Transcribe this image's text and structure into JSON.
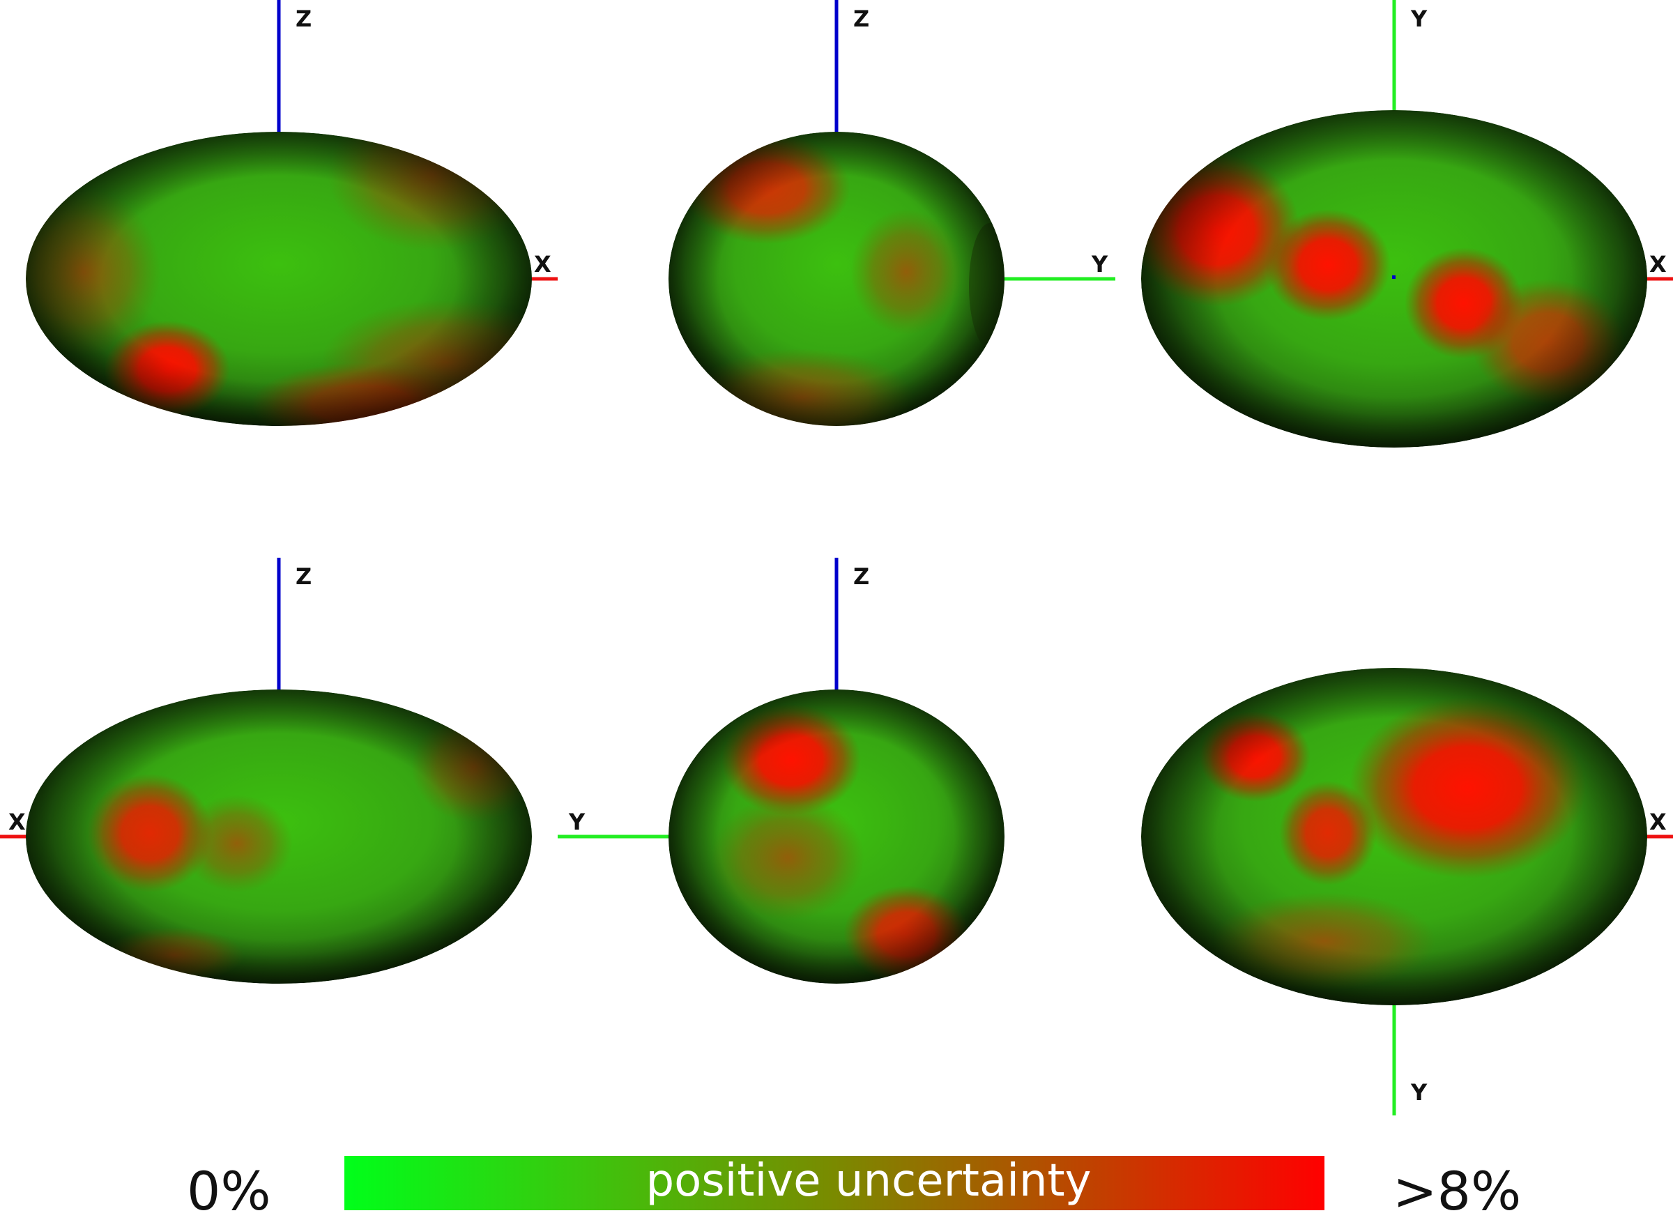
{
  "views": [
    {
      "id": "view-1",
      "axes": [
        {
          "label": "Z",
          "color": "#0000cc"
        },
        {
          "label": "X",
          "color": "#ee1111"
        }
      ]
    },
    {
      "id": "view-2",
      "axes": [
        {
          "label": "Z",
          "color": "#0000cc"
        },
        {
          "label": "Y",
          "color": "#22ee22"
        }
      ]
    },
    {
      "id": "view-3",
      "axes": [
        {
          "label": "Y",
          "color": "#22ee22"
        },
        {
          "label": "X",
          "color": "#ee1111"
        }
      ]
    },
    {
      "id": "view-4",
      "axes": [
        {
          "label": "Z",
          "color": "#0000cc"
        },
        {
          "label": "X",
          "color": "#ee1111"
        }
      ]
    },
    {
      "id": "view-5",
      "axes": [
        {
          "label": "Z",
          "color": "#0000cc"
        },
        {
          "label": "Y",
          "color": "#22ee22"
        }
      ]
    },
    {
      "id": "view-6",
      "axes": [
        {
          "label": "X",
          "color": "#ee1111"
        },
        {
          "label": "Y",
          "color": "#22ee22"
        }
      ]
    }
  ],
  "colorbar": {
    "title": "positive uncertainty",
    "min_label": "0%",
    "max_label": ">8%",
    "color_low": "#00ff1a",
    "color_mid": "#7a8a00",
    "color_high": "#ff0000"
  }
}
